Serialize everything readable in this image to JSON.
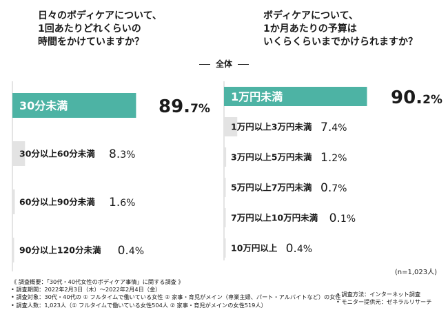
{
  "questions": {
    "left": "日々のボディケアについて、\n1回あたりどれくらいの\n時間をかけていますか？",
    "right": "ボディケアについて、\n1か月あたりの予算は\nいくらくらいまでかけられますか？"
  },
  "overall_label": "全体",
  "sample_size": "(n=1,023人)",
  "notes": {
    "overview": "《 調査概要：「30代・40代女性のボディケア事情」に関する調査 》",
    "period": "• 調査期間：2022年2月3日（木）～2022年2月4日（金）",
    "target": "• 調査対象：30代・40代の ① フルタイムで働いている女性 ② 家事・育児がメイン（専業主婦、パート・アルバイトなど）の女性",
    "count": "• 調査人数：1,023人（① フルタイムで働いている女性504人 ② 家事・育児がメインの女性519人）",
    "method": "• 調査方法：インターネット調査",
    "provider": "• モニター提供元：ゼネラルリサーチ"
  },
  "colors": {
    "highlight": "#4db3a4",
    "bar": "#e3e3e3",
    "axis": "#c8c8c8",
    "text": "#1a1a1a"
  },
  "chart_data": [
    {
      "type": "bar",
      "orientation": "horizontal",
      "categories": [
        "30分未満",
        "30分以上60分未満",
        "60分以上90分未満",
        "90分以上120分未満"
      ],
      "values": [
        89.7,
        8.3,
        1.6,
        0.4
      ],
      "unit": "%",
      "value_labels": [
        [
          "89.",
          "7",
          "%"
        ],
        [
          "8.",
          "3",
          "%"
        ],
        [
          "1.",
          "6",
          "%"
        ],
        [
          "0.",
          "4",
          "%"
        ]
      ],
      "xlim": [
        0,
        100
      ]
    },
    {
      "type": "bar",
      "orientation": "horizontal",
      "categories": [
        "1万円未満",
        "1万円以上3万円未満",
        "3万円以上5万円未満",
        "5万円以上7万円未満",
        "7万円以上10万円未満",
        "10万円以上"
      ],
      "values": [
        90.2,
        7.4,
        1.2,
        0.7,
        0.1,
        0.4
      ],
      "unit": "%",
      "value_labels": [
        [
          "90.",
          "2",
          "%"
        ],
        [
          "7.",
          "4",
          "%"
        ],
        [
          "1.",
          "2",
          "%"
        ],
        [
          "0.",
          "7",
          "%"
        ],
        [
          "0.",
          "1",
          "%"
        ],
        [
          "0.",
          "4",
          "%"
        ]
      ],
      "xlim": [
        0,
        100
      ]
    }
  ]
}
